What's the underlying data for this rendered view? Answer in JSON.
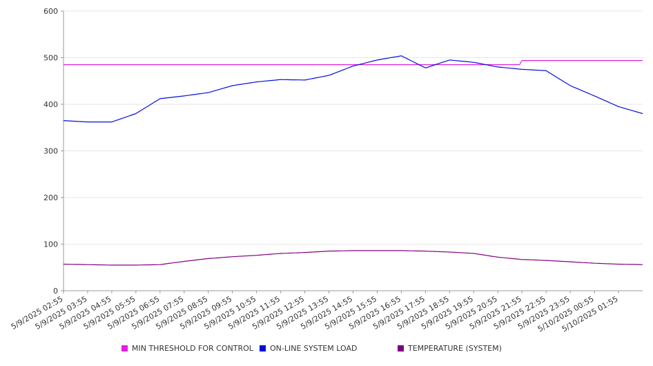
{
  "chart_data": {
    "type": "line",
    "ylim": [
      0,
      600
    ],
    "yticks": [
      0,
      100,
      200,
      300,
      400,
      500,
      600
    ],
    "grid": true,
    "legend_placement": "bottom",
    "x_start": "5/9/2025 02:55",
    "x_end": "5/10/2025 02:55",
    "x_tick_labels": [
      "5/9/2025 02:55",
      "5/9/2025 03:55",
      "5/9/2025 04:55",
      "5/9/2025 05:55",
      "5/9/2025 06:55",
      "5/9/2025 07:55",
      "5/9/2025 08:55",
      "5/9/2025 09:55",
      "5/9/2025 10:55",
      "5/9/2025 11:55",
      "5/9/2025 12:55",
      "5/9/2025 13:55",
      "5/9/2025 14:55",
      "5/9/2025 15:55",
      "5/9/2025 16:55",
      "5/9/2025 17:55",
      "5/9/2025 18:55",
      "5/9/2025 19:55",
      "5/9/2025 20:55",
      "5/9/2025 21:55",
      "5/9/2025 22:55",
      "5/9/2025 23:55",
      "5/10/2025 00:55",
      "5/10/2025 01:55"
    ],
    "x_hours": [
      0,
      1,
      2,
      3,
      4,
      5,
      6,
      7,
      8,
      9,
      10,
      11,
      12,
      13,
      14,
      15,
      16,
      17,
      18,
      19,
      20,
      21,
      22,
      23,
      24
    ],
    "series": [
      {
        "name": "MIN THRESHOLD FOR CONTROL",
        "color": "#e020e0",
        "values": [
          485,
          485,
          485,
          485,
          485,
          485,
          485,
          485,
          485,
          485,
          485,
          485,
          485,
          485,
          485,
          485,
          485,
          485,
          485,
          494,
          494,
          494,
          494,
          494,
          494
        ]
      },
      {
        "name": "ON-LINE SYSTEM LOAD",
        "color": "#0010d8",
        "values": [
          365,
          362,
          362,
          380,
          412,
          418,
          425,
          440,
          448,
          453,
          452,
          462,
          482,
          495,
          504,
          478,
          495,
          490,
          480,
          475,
          472,
          440,
          418,
          395,
          380
        ]
      },
      {
        "name": "TEMPERATURE (SYSTEM)",
        "color": "#800080",
        "values": [
          57,
          56,
          55,
          55,
          56,
          63,
          69,
          73,
          76,
          80,
          82,
          85,
          86,
          86,
          86,
          85,
          83,
          80,
          72,
          67,
          65,
          62,
          59,
          57,
          56
        ]
      }
    ]
  }
}
